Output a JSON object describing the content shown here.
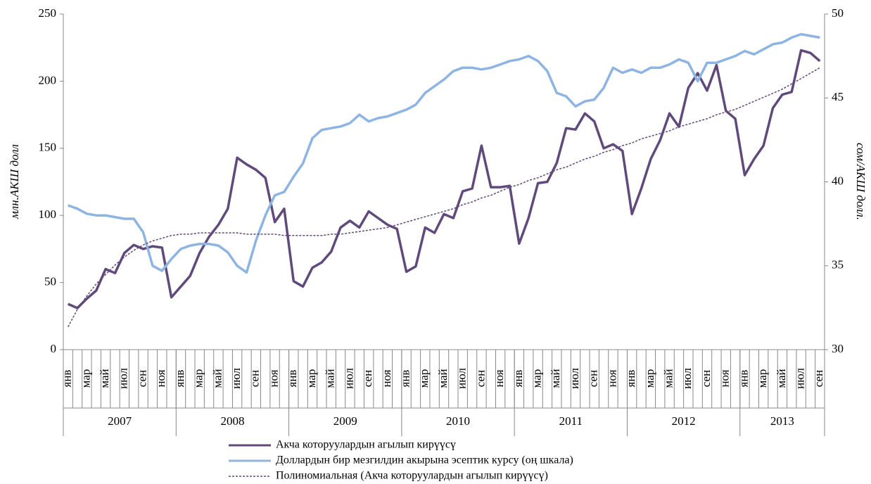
{
  "chart_data": {
    "type": "line",
    "y_label": "млн.АКШ долл",
    "y2_label": "сом/АКШ долл.",
    "categories": [
      "янв",
      null,
      "мар",
      null,
      "май",
      null,
      "июл",
      null,
      "сен",
      null,
      "ноя",
      null,
      "янв",
      null,
      "мар",
      null,
      "май",
      null,
      "июл",
      null,
      "сен",
      null,
      "ноя",
      null,
      "янв",
      null,
      "мар",
      null,
      "май",
      null,
      "июл",
      null,
      "сен",
      null,
      "ноя",
      null,
      "янв",
      null,
      "мар",
      null,
      "май",
      null,
      "июл",
      null,
      "сен",
      null,
      "ноя",
      null,
      "янв",
      null,
      "мар",
      null,
      "май",
      null,
      "июл",
      null,
      "сен",
      null,
      "ноя",
      null,
      "янв",
      null,
      "мар",
      null,
      "май",
      null,
      "июл",
      null,
      "сен",
      null,
      "ноя",
      null,
      "янв",
      null,
      "мар",
      null,
      "май",
      null,
      "июл",
      null,
      "сен"
    ],
    "groups": [
      "2007",
      "2008",
      "2009",
      "2010",
      "2011",
      "2012",
      "2013"
    ],
    "ylim": [
      0,
      250
    ],
    "yticks": [
      0,
      50,
      100,
      150,
      200,
      250
    ],
    "y2lim": [
      30,
      50
    ],
    "y2ticks": [
      30,
      35,
      40,
      45,
      50
    ],
    "grid": false,
    "legend": "bottom",
    "series": [
      {
        "name": "Акча которуулардын агылып кирүүсү",
        "color": "#604a7b",
        "width": 3.5,
        "dashed": false,
        "values": [
          34,
          31,
          38,
          44,
          60,
          57,
          72,
          78,
          75,
          77,
          76,
          39,
          47,
          55,
          72,
          84,
          93,
          105,
          143,
          138,
          134,
          128,
          95,
          105,
          51,
          47,
          61,
          65,
          73,
          91,
          96,
          91,
          103,
          98,
          93,
          90,
          58,
          62,
          91,
          87,
          101,
          98,
          118,
          120,
          152,
          121,
          121,
          122,
          79,
          98,
          124,
          125,
          139,
          165,
          164,
          176,
          170,
          150,
          153,
          148,
          101,
          120,
          142,
          156,
          176,
          166,
          195,
          206,
          193,
          212,
          178,
          172,
          130,
          142,
          152,
          180,
          190,
          192,
          223,
          221,
          215
        ]
      },
      {
        "name": "Доллардын бир мезгилдин акырына эсептик курсу (оң шкала)",
        "color": "#8db4e2",
        "width": 3.5,
        "dashed": false,
        "axis": "y2",
        "values": [
          38.6,
          38.4,
          38.1,
          38.0,
          38.0,
          37.9,
          37.8,
          37.8,
          37.0,
          35.0,
          34.7,
          35.4,
          36.0,
          36.2,
          36.3,
          36.3,
          36.2,
          35.8,
          35.0,
          34.6,
          36.5,
          38.0,
          39.2,
          39.4,
          40.3,
          41.1,
          42.6,
          43.1,
          43.2,
          43.3,
          43.5,
          44.0,
          43.6,
          43.8,
          43.9,
          44.1,
          44.3,
          44.6,
          45.3,
          45.7,
          46.1,
          46.6,
          46.8,
          46.8,
          46.7,
          46.8,
          47.0,
          47.2,
          47.3,
          47.5,
          47.2,
          46.6,
          45.3,
          45.1,
          44.5,
          44.8,
          44.9,
          45.6,
          46.8,
          46.5,
          46.7,
          46.5,
          46.8,
          46.8,
          47.0,
          47.3,
          47.1,
          46.0,
          47.1,
          47.1,
          47.3,
          47.5,
          47.8,
          47.6,
          47.9,
          48.2,
          48.3,
          48.6,
          48.8,
          48.7,
          48.6
        ]
      },
      {
        "name": "Полиномиальная (Акча которуулардын агылып кирүүсү)",
        "color": "#604a7b",
        "width": 1.5,
        "dashed": true,
        "values": [
          17,
          30,
          40,
          49,
          56,
          63,
          69,
          74,
          78,
          81,
          83,
          85,
          86,
          86,
          87,
          87,
          87,
          87,
          87,
          86,
          86,
          86,
          86,
          85,
          85,
          85,
          85,
          85,
          86,
          86,
          87,
          88,
          89,
          90,
          91,
          93,
          95,
          97,
          99,
          101,
          103,
          105,
          108,
          110,
          113,
          115,
          118,
          121,
          123,
          126,
          128,
          131,
          134,
          136,
          139,
          142,
          144,
          147,
          149,
          152,
          154,
          157,
          159,
          161,
          163,
          166,
          168,
          170,
          172,
          175,
          177,
          179,
          182,
          185,
          188,
          191,
          194,
          198,
          202,
          206,
          210
        ]
      }
    ]
  }
}
